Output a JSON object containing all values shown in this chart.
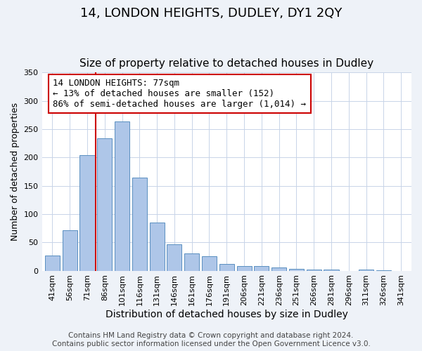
{
  "title": "14, LONDON HEIGHTS, DUDLEY, DY1 2QY",
  "subtitle": "Size of property relative to detached houses in Dudley",
  "xlabel": "Distribution of detached houses by size in Dudley",
  "ylabel": "Number of detached properties",
  "bar_labels": [
    "41sqm",
    "56sqm",
    "71sqm",
    "86sqm",
    "101sqm",
    "116sqm",
    "131sqm",
    "146sqm",
    "161sqm",
    "176sqm",
    "191sqm",
    "206sqm",
    "221sqm",
    "236sqm",
    "251sqm",
    "266sqm",
    "281sqm",
    "296sqm",
    "311sqm",
    "326sqm",
    "341sqm"
  ],
  "bar_values": [
    27,
    71,
    204,
    234,
    264,
    164,
    85,
    46,
    30,
    25,
    12,
    8,
    8,
    6,
    3,
    2,
    2,
    0,
    2,
    1,
    0
  ],
  "bar_color": "#aec6e8",
  "bar_edge_color": "#5a8fc0",
  "vline_color": "#cc0000",
  "annotation_text": "14 LONDON HEIGHTS: 77sqm\n← 13% of detached houses are smaller (152)\n86% of semi-detached houses are larger (1,014) →",
  "annotation_box_color": "#ffffff",
  "annotation_box_edge": "#cc0000",
  "ylim": [
    0,
    350
  ],
  "yticks": [
    0,
    50,
    100,
    150,
    200,
    250,
    300,
    350
  ],
  "footer1": "Contains HM Land Registry data © Crown copyright and database right 2024.",
  "footer2": "Contains public sector information licensed under the Open Government Licence v3.0.",
  "background_color": "#eef2f8",
  "plot_bg_color": "#ffffff",
  "title_fontsize": 13,
  "subtitle_fontsize": 11,
  "xlabel_fontsize": 10,
  "ylabel_fontsize": 9,
  "tick_fontsize": 8,
  "footer_fontsize": 7.5
}
